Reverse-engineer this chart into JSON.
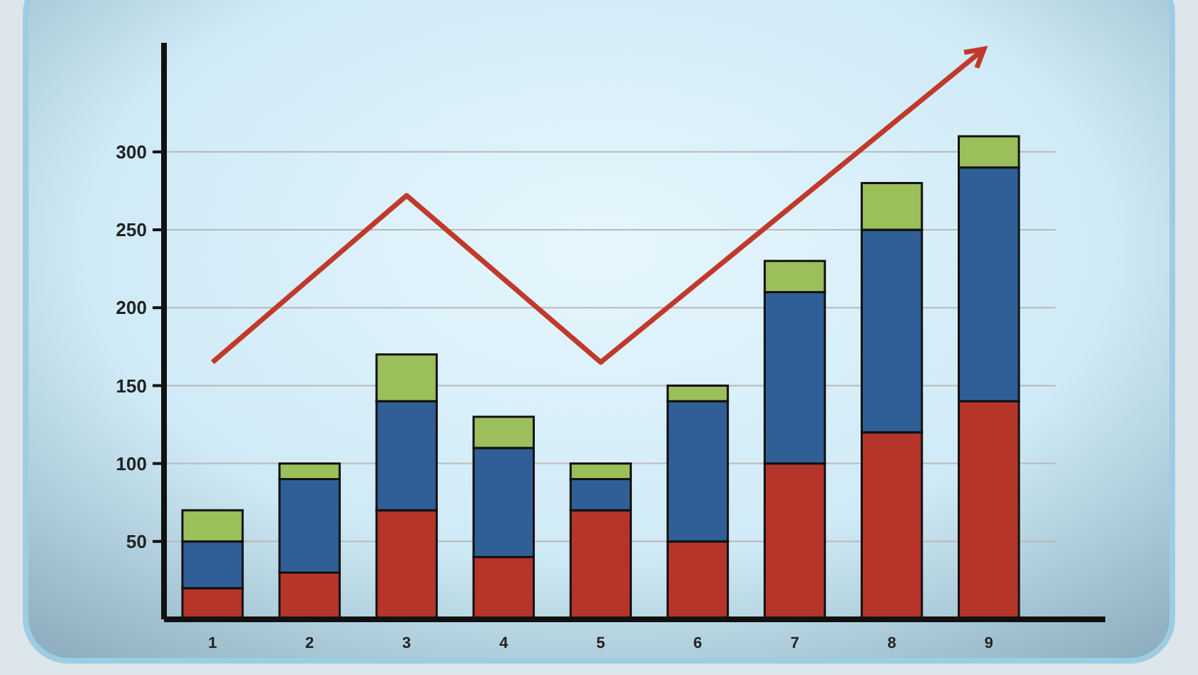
{
  "chart_data": {
    "type": "bar",
    "stacked": true,
    "x": [
      1,
      2,
      3,
      4,
      5,
      6,
      7,
      8,
      9
    ],
    "xlim": [
      0.5,
      10.2
    ],
    "xticks": [
      1,
      2,
      3,
      4,
      5,
      6,
      7,
      8,
      9
    ],
    "ylim": [
      0,
      370
    ],
    "yticks": [
      50,
      100,
      150,
      200,
      250,
      300
    ],
    "grid": "y",
    "series": [
      {
        "color": "#b5352a",
        "values": [
          20,
          30,
          70,
          40,
          70,
          50,
          100,
          120,
          140
        ]
      },
      {
        "color": "#2f5f96",
        "values": [
          30,
          60,
          70,
          70,
          20,
          90,
          110,
          130,
          150
        ]
      },
      {
        "color": "#9bbf5a",
        "values": [
          20,
          10,
          30,
          20,
          10,
          10,
          20,
          30,
          20
        ]
      },
      {
        "type": "line",
        "color": "#c0392b",
        "x": [
          1,
          3,
          5,
          8.95
        ],
        "values": [
          165,
          272,
          165,
          366
        ],
        "marker": "none"
      }
    ]
  }
}
